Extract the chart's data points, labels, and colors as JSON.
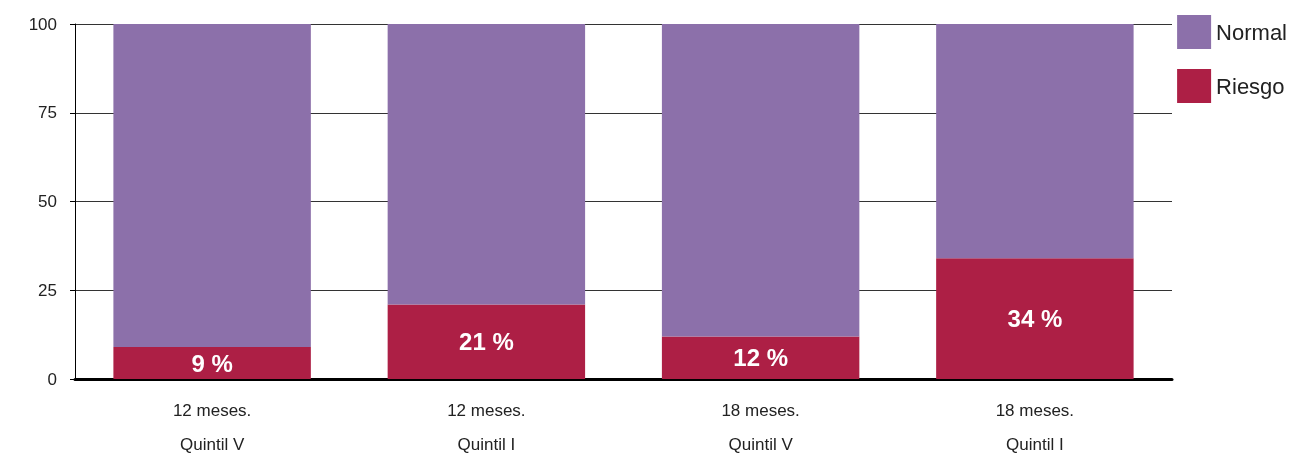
{
  "chart_data": {
    "type": "bar",
    "stacked": true,
    "categories": [
      "12 meses.\nQuintil V",
      "12 meses.\nQuintil I",
      "18 meses.\nQuintil V",
      "18 meses.\nQuintil I"
    ],
    "series": [
      {
        "name": "Riesgo",
        "color": "#ad1f45",
        "values": [
          9,
          21,
          12,
          34
        ],
        "value_labels": [
          "9 %",
          "21 %",
          "12 %",
          "34 %"
        ]
      },
      {
        "name": "Normal",
        "color": "#8c70aa",
        "values": [
          91,
          79,
          88,
          66
        ]
      }
    ],
    "ylim": [
      0,
      100
    ],
    "yticks": [
      0,
      25,
      50,
      75,
      100
    ],
    "grid": "y",
    "legend": "top right"
  }
}
